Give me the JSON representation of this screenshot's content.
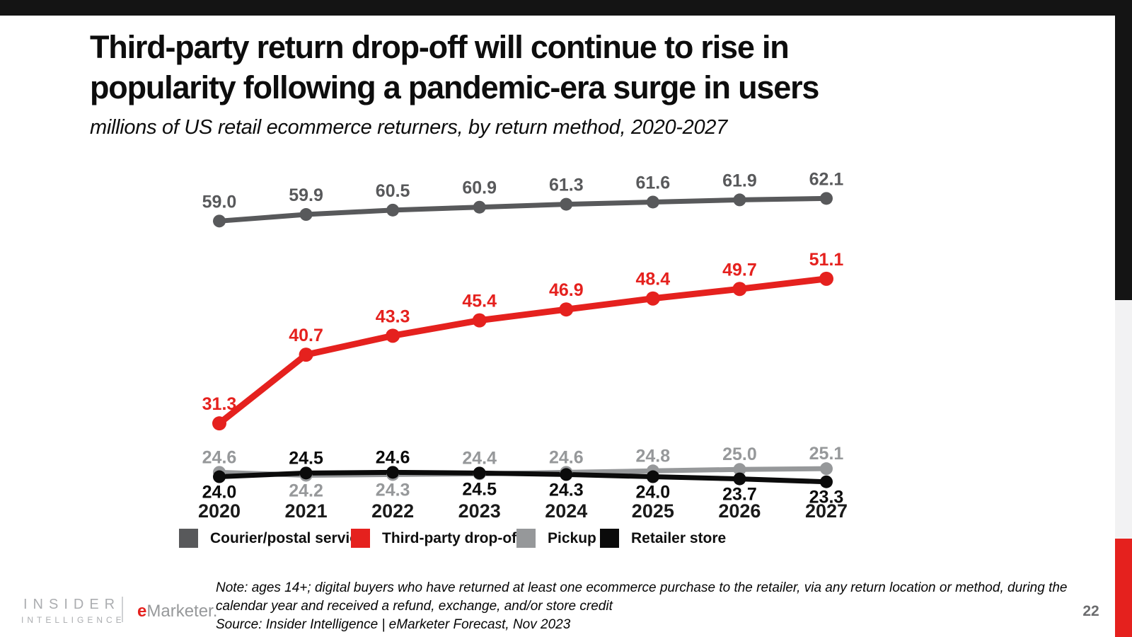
{
  "slide": {
    "title": "Third-party return drop-off will continue to rise in\npopularity following a pandemic-era surge in users",
    "subtitle": "millions of US retail ecommerce returners, by return method, 2020-2027",
    "note": "Note: ages 14+; digital buyers who have returned at least one ecommerce purchase to the retailer, via any return location or method, during the\ncalendar year and received a refund, exchange, and/or store credit",
    "source": "Source: Insider Intelligence | eMarketer Forecast, Nov 2023"
  },
  "footer": {
    "insider_line1": "INSIDER",
    "insider_line2": "INTELLIGENCE",
    "emarketer_e": "e",
    "emarketer_rest": "Marketer.",
    "page_number": "22"
  },
  "colors": {
    "accent_red": "#e5211e",
    "top_bar": "#141414",
    "edge_gray": "#f2f2f3"
  },
  "chart_data": {
    "type": "line",
    "title": "Third-party return drop-off will continue to rise in popularity following a pandemic-era surge in users",
    "subtitle": "millions of US retail ecommerce returners, by return method, 2020-2027",
    "categories": [
      "2020",
      "2021",
      "2022",
      "2023",
      "2024",
      "2025",
      "2026",
      "2027"
    ],
    "series": [
      {
        "name": "Courier/postal service",
        "color": "#58595b",
        "values": [
          59.0,
          59.9,
          60.5,
          60.9,
          61.3,
          61.6,
          61.9,
          62.1
        ]
      },
      {
        "name": "Third-party drop-off",
        "color": "#e5211e",
        "values": [
          31.3,
          40.7,
          43.3,
          45.4,
          46.9,
          48.4,
          49.7,
          51.1
        ]
      },
      {
        "name": "Pickup",
        "color": "#96989a",
        "values": [
          24.6,
          24.2,
          24.3,
          24.4,
          24.6,
          24.8,
          25.0,
          25.1
        ]
      },
      {
        "name": "Retailer store",
        "color": "#0b0b0b",
        "values": [
          24.0,
          24.5,
          24.6,
          24.5,
          24.3,
          24.0,
          23.7,
          23.3
        ]
      }
    ],
    "ylim": [
      20,
      65
    ],
    "grid": false,
    "y_axis_visible": false,
    "marker": "circle",
    "data_labels": "all points, one decimal",
    "legend_position": "bottom",
    "label_layout": {
      "cluster_label_above": [
        "Pickup",
        "Retailer store",
        "Retailer store",
        "Pickup",
        "Pickup",
        "Pickup",
        "Pickup",
        "Pickup"
      ]
    }
  }
}
